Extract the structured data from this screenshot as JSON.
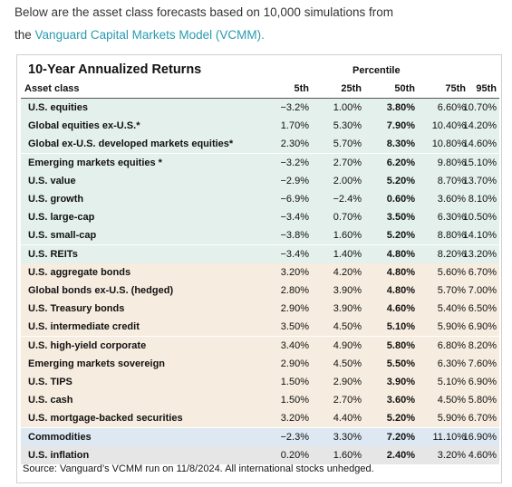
{
  "intro": {
    "line1": "Below are the asset class forecasts based on 10,000 simulations from",
    "prefix": "the",
    "link": "Vanguard Capital Markets Model (VCMM)."
  },
  "table": {
    "title": "10-Year Annualized Returns",
    "group_label": "Percentile",
    "columns": [
      "Asset class",
      "5th",
      "25th",
      "50th",
      "75th",
      "95th"
    ],
    "rows": [
      [
        "U.S. equities",
        "−3.2%",
        "1.00%",
        "3.80%",
        "6.60%",
        "10.70%"
      ],
      [
        "Global equities ex-U.S.*",
        "1.70%",
        "5.30%",
        "7.90%",
        "10.40%",
        "14.20%"
      ],
      [
        "Global ex-U.S. developed markets equities*",
        "2.30%",
        "5.70%",
        "8.30%",
        "10.80%",
        "14.60%"
      ],
      [
        "Emerging markets equities *",
        "−3.2%",
        "2.70%",
        "6.20%",
        "9.80%",
        "15.10%"
      ],
      [
        "U.S. value",
        "−2.9%",
        "2.00%",
        "5.20%",
        "8.70%",
        "13.70%"
      ],
      [
        "U.S. growth",
        "−6.9%",
        "−2.4%",
        "0.60%",
        "3.60%",
        "8.10%"
      ],
      [
        "U.S. large-cap",
        "−3.4%",
        "0.70%",
        "3.50%",
        "6.30%",
        "10.50%"
      ],
      [
        "U.S. small-cap",
        "−3.8%",
        "1.60%",
        "5.20%",
        "8.80%",
        "14.10%"
      ],
      [
        "U.S. REITs",
        "−3.4%",
        "1.40%",
        "4.80%",
        "8.20%",
        "13.20%"
      ],
      [
        "U.S. aggregate bonds",
        "3.20%",
        "4.20%",
        "4.80%",
        "5.60%",
        "6.70%"
      ],
      [
        "Global bonds ex-U.S. (hedged)",
        "2.80%",
        "3.90%",
        "4.80%",
        "5.70%",
        "7.00%"
      ],
      [
        "U.S. Treasury bonds",
        "2.90%",
        "3.90%",
        "4.60%",
        "5.40%",
        "6.50%"
      ],
      [
        "U.S. intermediate credit",
        "3.50%",
        "4.50%",
        "5.10%",
        "5.90%",
        "6.90%"
      ],
      [
        "U.S. high-yield corporate",
        "3.40%",
        "4.90%",
        "5.80%",
        "6.80%",
        "8.20%"
      ],
      [
        "Emerging markets sovereign",
        "2.90%",
        "4.50%",
        "5.50%",
        "6.30%",
        "7.60%"
      ],
      [
        "U.S. TIPS",
        "1.50%",
        "2.90%",
        "3.90%",
        "5.10%",
        "6.90%"
      ],
      [
        "U.S. cash",
        "1.50%",
        "2.70%",
        "3.60%",
        "4.50%",
        "5.80%"
      ],
      [
        "U.S. mortgage-backed securities",
        "3.20%",
        "4.40%",
        "5.20%",
        "5.90%",
        "6.70%"
      ],
      [
        "Commodities",
        "−2.3%",
        "3.30%",
        "7.20%",
        "11.10%",
        "16.90%"
      ],
      [
        "U.S. inflation",
        "0.20%",
        "1.60%",
        "2.40%",
        "3.20%",
        "4.60%"
      ]
    ],
    "source": "Source: Vanguard’s VCMM run on 11/8/2024. All international stocks unhedged."
  }
}
